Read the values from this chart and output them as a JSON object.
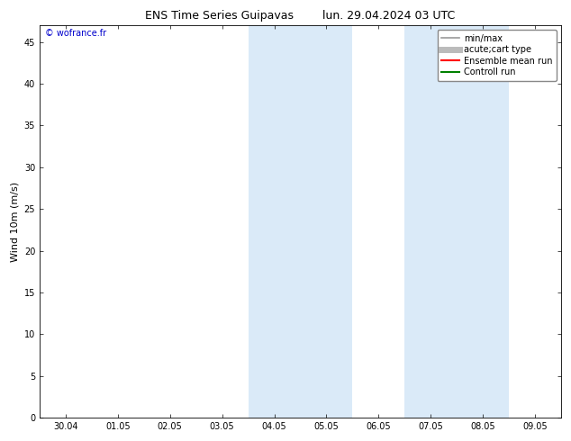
{
  "title_left": "ENS Time Series Guipavas",
  "title_right": "lun. 29.04.2024 03 UTC",
  "ylabel": "Wind 10m (m/s)",
  "watermark": "© wofrance.fr",
  "watermark_color": "#0000cc",
  "xlabels": [
    "30.04",
    "01.05",
    "02.05",
    "03.05",
    "04.05",
    "05.05",
    "06.05",
    "07.05",
    "08.05",
    "09.05"
  ],
  "ylim": [
    0,
    47
  ],
  "yticks": [
    0,
    5,
    10,
    15,
    20,
    25,
    30,
    35,
    40,
    45
  ],
  "background_color": "#ffffff",
  "plot_bg_color": "#ffffff",
  "shaded_regions": [
    {
      "xstart": 4,
      "xend": 6,
      "color": "#daeaf8"
    },
    {
      "xstart": 7,
      "xend": 9,
      "color": "#daeaf8"
    }
  ],
  "legend_entries": [
    {
      "label": "min/max",
      "color": "#999999",
      "lw": 1.2
    },
    {
      "label": "acute;cart type",
      "color": "#bbbbbb",
      "lw": 5
    },
    {
      "label": "Ensemble mean run",
      "color": "#ff0000",
      "lw": 1.5
    },
    {
      "label": "Controll run",
      "color": "#008000",
      "lw": 1.5
    }
  ],
  "tick_fontsize": 7,
  "title_fontsize": 9,
  "ylabel_fontsize": 8,
  "watermark_fontsize": 7,
  "legend_fontsize": 7
}
